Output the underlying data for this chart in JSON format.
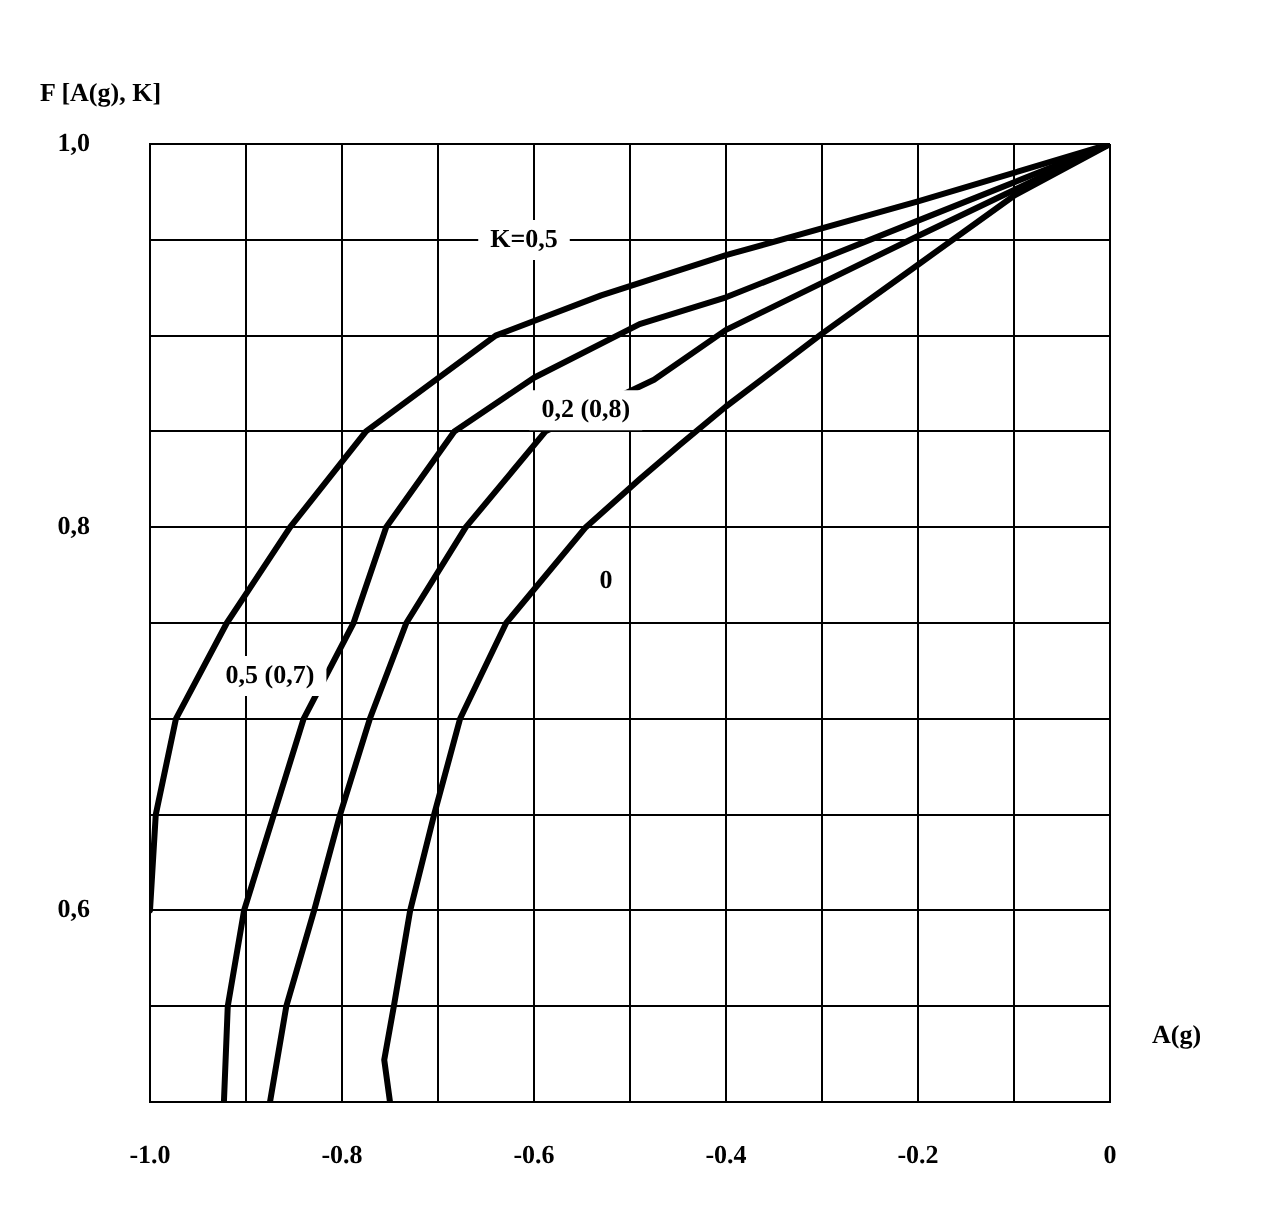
{
  "chart_data": {
    "type": "line",
    "xlabel": "A(g)",
    "ylabel": "F [A(g), K]",
    "xlim": [
      -1,
      0
    ],
    "ylim": [
      0.5,
      1
    ],
    "xticks": [
      {
        "value": -1,
        "label": "-1.0"
      },
      {
        "value": -0.9,
        "label": null
      },
      -0.8,
      {
        "value": -0.7,
        "label": null
      },
      -0.6,
      {
        "value": -0.5,
        "label": null
      },
      -0.4,
      {
        "value": -0.3,
        "label": null
      },
      -0.2,
      {
        "value": -0.1,
        "label": null
      },
      0
    ],
    "yticks": [
      {
        "value": 0.5,
        "label": null
      },
      {
        "value": 0.55,
        "label": null
      },
      {
        "value": 0.6,
        "label": "0,6"
      },
      {
        "value": 0.65,
        "label": null
      },
      {
        "value": 0.7,
        "label": null
      },
      {
        "value": 0.75,
        "label": null
      },
      {
        "value": 0.8,
        "label": "0,8"
      },
      {
        "value": 0.85,
        "label": null
      },
      {
        "value": 0.9,
        "label": null
      },
      {
        "value": 0.95,
        "label": null
      },
      {
        "value": 1,
        "label": "1,0"
      }
    ],
    "grid": true,
    "legend": false,
    "marker": "none",
    "line_style": "solid",
    "series": [
      {
        "color": "#000000",
        "x": [
          -1,
          -0.994,
          -0.973,
          -0.92,
          -0.854,
          -0.775,
          -0.64,
          -0.53,
          -0.4,
          -0.2,
          0
        ],
        "values": [
          0.6,
          0.65,
          0.7,
          0.75,
          0.8,
          0.85,
          0.9,
          0.921,
          0.942,
          0.97,
          1
        ]
      },
      {
        "color": "#000000",
        "x": [
          -0.923,
          -0.919,
          -0.902,
          -0.871,
          -0.84,
          -0.788,
          -0.754,
          -0.683,
          -0.6,
          -0.49,
          -0.4,
          -0.2,
          0
        ],
        "values": [
          0.5,
          0.55,
          0.6,
          0.65,
          0.7,
          0.75,
          0.8,
          0.85,
          0.878,
          0.906,
          0.92,
          0.96,
          1
        ]
      },
      {
        "color": "#000000",
        "x": [
          -0.875,
          -0.858,
          -0.829,
          -0.802,
          -0.771,
          -0.733,
          -0.671,
          -0.588,
          -0.475,
          -0.4,
          -0.2,
          0
        ],
        "values": [
          0.5,
          0.55,
          0.6,
          0.65,
          0.7,
          0.75,
          0.8,
          0.85,
          0.877,
          0.903,
          0.952,
          1
        ]
      },
      {
        "color": "#000000",
        "x": [
          -0.75,
          -0.756,
          -0.746,
          -0.729,
          -0.704,
          -0.677,
          -0.629,
          -0.546,
          -0.49,
          -0.448,
          -0.4,
          -0.3,
          -0.2,
          -0.1,
          0
        ],
        "values": [
          0.5,
          0.522,
          0.55,
          0.6,
          0.65,
          0.7,
          0.75,
          0.8,
          0.825,
          0.843,
          0.863,
          0.901,
          0.937,
          0.973,
          1
        ]
      }
    ],
    "annotations": [
      "K=0,5",
      {
        "text": "0,2 (0,8)",
        "x": -0.546,
        "y": 0.861
      },
      {
        "text": "0",
        "x": -0.525,
        "y": 0.772
      },
      "0,5 (0,7)"
    ]
  }
}
